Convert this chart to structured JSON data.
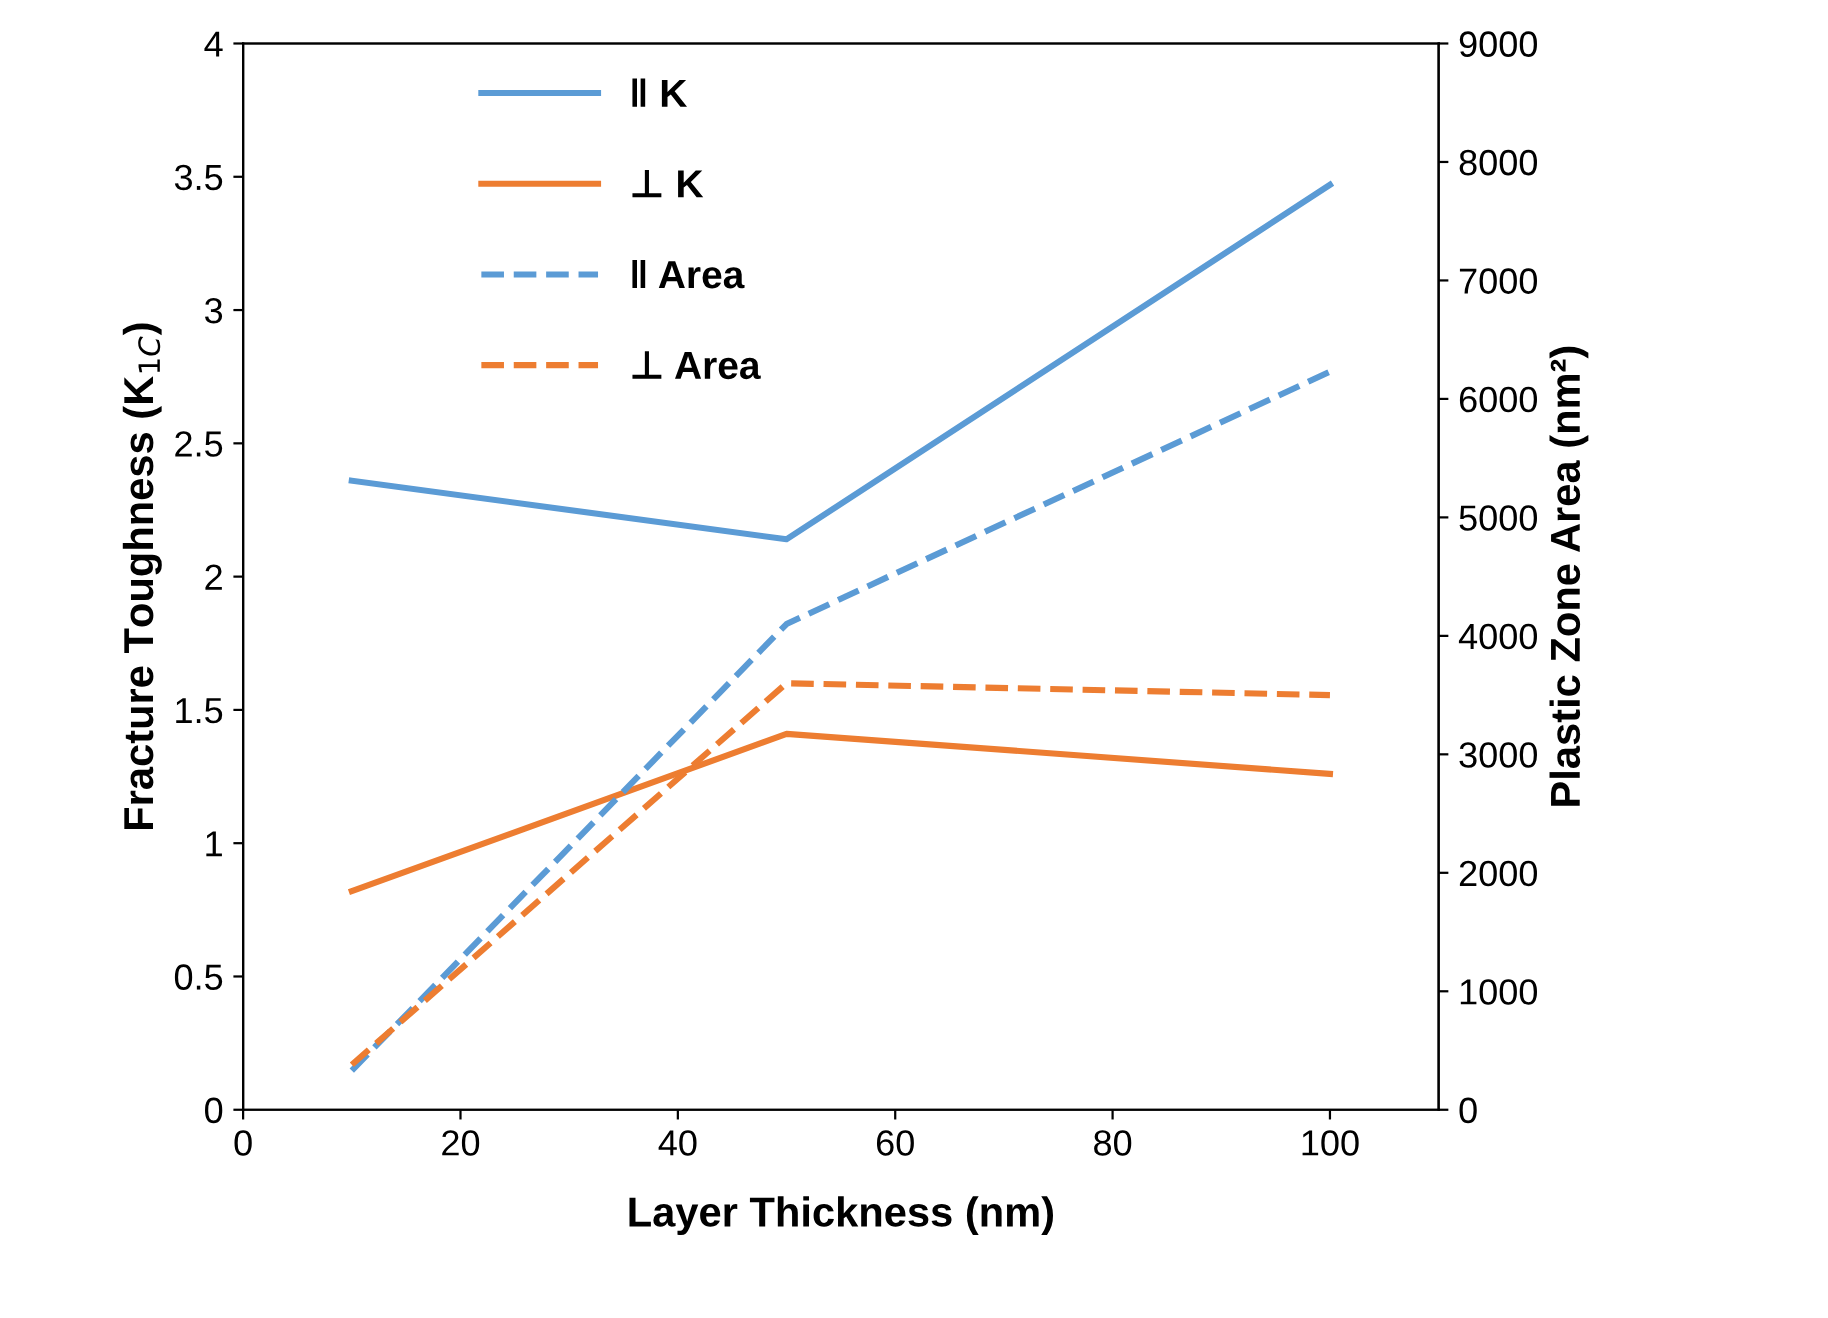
{
  "chart_data": {
    "type": "line",
    "xlabel": "Layer Thickness (nm)",
    "ylabel": "Fracture Toughness (K$_{1C}$)",
    "y2label": "Plastic Zone Area (nm²)",
    "x": [
      10,
      50,
      100
    ],
    "series": [
      {
        "name": "‖ K",
        "color": "#5b9bd5",
        "values": [
          2.36,
          2.14,
          3.47
        ],
        "line_style": "solid"
      },
      {
        "name": "⊥ K",
        "color": "#ed7d31",
        "values": [
          0.82,
          1.41,
          1.26
        ],
        "line_style": "solid"
      },
      {
        "name": "‖ Area",
        "color": "#5b9bd5",
        "values": [
          330,
          4100,
          6230
        ],
        "axis": "y2",
        "line_style": "dashed"
      },
      {
        "name": "⊥ Area",
        "color": "#ed7d31",
        "values": [
          380,
          3600,
          3500
        ],
        "axis": "y2",
        "line_style": "dashed"
      }
    ],
    "xlim": [
      0,
      110
    ],
    "xticks": [
      0,
      20,
      40,
      60,
      80,
      100
    ],
    "ylim": [
      0,
      4
    ],
    "yticks": [
      0,
      0.5,
      1,
      1.5,
      2,
      2.5,
      3,
      3.5,
      4
    ],
    "y2lim": [
      0,
      9000
    ],
    "y2ticks": [
      0,
      1000,
      2000,
      3000,
      4000,
      5000,
      6000,
      7000,
      8000,
      9000
    ],
    "grid": false,
    "legend": "top left",
    "marker": "none"
  }
}
